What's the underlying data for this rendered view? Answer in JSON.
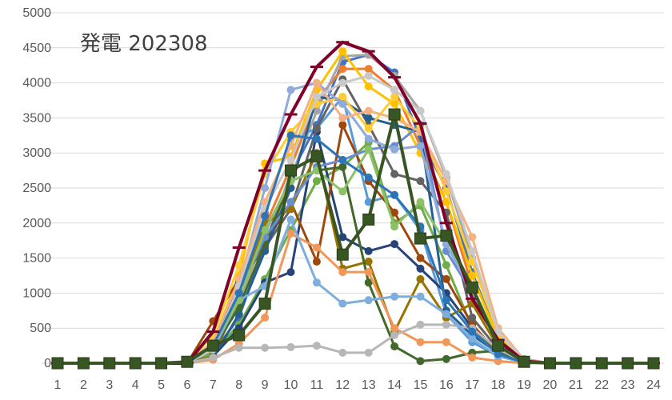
{
  "chart_data": {
    "type": "line",
    "title": "発電 202308",
    "xlabel": "",
    "ylabel": "",
    "x": [
      1,
      2,
      3,
      4,
      5,
      6,
      7,
      8,
      9,
      10,
      11,
      12,
      13,
      14,
      15,
      16,
      17,
      18,
      19,
      20,
      21,
      22,
      23,
      24
    ],
    "xticks": [
      "1",
      "2",
      "3",
      "4",
      "5",
      "6",
      "7",
      "8",
      "9",
      "10",
      "11",
      "12",
      "13",
      "14",
      "15",
      "16",
      "17",
      "18",
      "19",
      "20",
      "21",
      "22",
      "23",
      "24"
    ],
    "ylim": [
      0,
      5000
    ],
    "yticks": [
      "0",
      "500",
      "1000",
      "1500",
      "2000",
      "2500",
      "3000",
      "3500",
      "4000",
      "4500",
      "5000"
    ],
    "grid": "horizontal",
    "legend": "none",
    "series": [
      {
        "color": "#4472c4",
        "marker": "circle",
        "values": [
          0,
          0,
          0,
          0,
          0,
          0,
          150,
          650,
          1700,
          2700,
          3400,
          4300,
          4400,
          4150,
          3200,
          2500,
          1300,
          350,
          50,
          0,
          0,
          0,
          0,
          0
        ]
      },
      {
        "color": "#ed7d31",
        "marker": "circle",
        "values": [
          0,
          0,
          0,
          0,
          0,
          0,
          250,
          950,
          1950,
          2800,
          3750,
          4200,
          4200,
          3900,
          3100,
          2300,
          1100,
          300,
          30,
          0,
          0,
          0,
          0,
          0
        ]
      },
      {
        "color": "#a5a5a5",
        "marker": "circle",
        "values": [
          0,
          0,
          0,
          0,
          0,
          0,
          200,
          850,
          1850,
          2650,
          3600,
          4380,
          4400,
          4100,
          3600,
          2650,
          1500,
          450,
          60,
          0,
          0,
          0,
          0,
          0
        ]
      },
      {
        "color": "#ffc000",
        "marker": "circle",
        "values": [
          0,
          0,
          0,
          0,
          0,
          0,
          300,
          1250,
          2850,
          2950,
          3900,
          4450,
          3950,
          3700,
          3000,
          2300,
          1250,
          350,
          40,
          0,
          0,
          0,
          0,
          0
        ]
      },
      {
        "color": "#5b9bd5",
        "marker": "circle",
        "values": [
          0,
          0,
          0,
          0,
          0,
          0,
          150,
          1000,
          2150,
          3200,
          3350,
          3800,
          2300,
          2400,
          1900,
          700,
          300,
          100,
          10,
          0,
          0,
          0,
          0,
          0
        ]
      },
      {
        "color": "#70ad47",
        "marker": "circle",
        "values": [
          0,
          0,
          0,
          0,
          0,
          0,
          150,
          550,
          1200,
          1900,
          2600,
          2800,
          3150,
          2000,
          2250,
          1400,
          500,
          150,
          10,
          0,
          0,
          0,
          0,
          0
        ]
      },
      {
        "color": "#264478",
        "marker": "circle",
        "values": [
          0,
          0,
          0,
          0,
          0,
          0,
          100,
          500,
          1150,
          1300,
          3300,
          1800,
          1600,
          1700,
          1350,
          1000,
          500,
          180,
          20,
          0,
          0,
          0,
          0,
          0
        ]
      },
      {
        "color": "#9e480e",
        "marker": "circle",
        "values": [
          0,
          0,
          0,
          0,
          0,
          0,
          600,
          1200,
          1700,
          2300,
          1450,
          3400,
          2600,
          2150,
          1500,
          1200,
          550,
          150,
          20,
          0,
          0,
          0,
          0,
          0
        ]
      },
      {
        "color": "#636363",
        "marker": "circle",
        "values": [
          0,
          0,
          0,
          0,
          0,
          0,
          300,
          1150,
          1650,
          2200,
          3350,
          4050,
          3400,
          2700,
          2600,
          2150,
          650,
          200,
          20,
          0,
          0,
          0,
          0,
          0
        ]
      },
      {
        "color": "#997300",
        "marker": "circle",
        "values": [
          0,
          0,
          0,
          0,
          0,
          0,
          100,
          900,
          2000,
          2200,
          3000,
          1350,
          1450,
          450,
          1200,
          650,
          850,
          230,
          20,
          0,
          0,
          0,
          0,
          0
        ]
      },
      {
        "color": "#255e91",
        "marker": "circle",
        "values": [
          0,
          0,
          0,
          0,
          0,
          0,
          80,
          700,
          1600,
          2500,
          3800,
          3750,
          3500,
          3400,
          3300,
          750,
          400,
          150,
          10,
          0,
          0,
          0,
          0,
          0
        ]
      },
      {
        "color": "#43682b",
        "marker": "circle",
        "values": [
          0,
          0,
          0,
          0,
          0,
          0,
          200,
          800,
          1700,
          2600,
          2750,
          2800,
          1150,
          240,
          30,
          60,
          150,
          180,
          20,
          0,
          0,
          0,
          0,
          0
        ]
      },
      {
        "color": "#698ed0",
        "marker": "circle",
        "values": [
          0,
          0,
          0,
          0,
          0,
          0,
          300,
          1000,
          1800,
          2300,
          2800,
          2900,
          3050,
          3100,
          3400,
          1600,
          1000,
          280,
          20,
          0,
          0,
          0,
          0,
          0
        ]
      },
      {
        "color": "#f1975a",
        "marker": "circle",
        "values": [
          0,
          0,
          0,
          0,
          0,
          0,
          50,
          280,
          650,
          1850,
          1650,
          1300,
          1300,
          500,
          300,
          300,
          80,
          30,
          0,
          0,
          0,
          0,
          0,
          0
        ]
      },
      {
        "color": "#b7b7b7",
        "marker": "circle",
        "values": [
          0,
          0,
          0,
          0,
          0,
          0,
          80,
          220,
          220,
          230,
          250,
          150,
          150,
          400,
          550,
          550,
          500,
          200,
          20,
          0,
          0,
          0,
          0,
          0
        ]
      },
      {
        "color": "#ffcd33",
        "marker": "circle",
        "values": [
          0,
          0,
          0,
          0,
          0,
          0,
          400,
          1400,
          2700,
          3300,
          3700,
          3800,
          3350,
          3800,
          3350,
          2450,
          1450,
          420,
          40,
          0,
          0,
          0,
          0,
          0
        ]
      },
      {
        "color": "#7cafdd",
        "marker": "circle",
        "values": [
          0,
          0,
          0,
          0,
          0,
          0,
          200,
          900,
          1100,
          2050,
          1150,
          850,
          900,
          950,
          950,
          700,
          350,
          100,
          10,
          0,
          0,
          0,
          0,
          0
        ]
      },
      {
        "color": "#8cc168",
        "marker": "circle",
        "values": [
          0,
          0,
          0,
          0,
          0,
          0,
          250,
          900,
          1900,
          2600,
          2750,
          2450,
          3050,
          1950,
          2300,
          1700,
          1100,
          300,
          30,
          0,
          0,
          0,
          0,
          0
        ]
      },
      {
        "color": "#8faadc",
        "marker": "circle",
        "values": [
          0,
          0,
          0,
          0,
          0,
          0,
          200,
          1100,
          2500,
          3900,
          4000,
          3700,
          3200,
          3050,
          3100,
          1700,
          1000,
          300,
          30,
          0,
          0,
          0,
          0,
          0
        ]
      },
      {
        "color": "#f4b183",
        "marker": "circle",
        "values": [
          0,
          0,
          0,
          0,
          0,
          0,
          300,
          1200,
          2300,
          3100,
          4000,
          3500,
          3600,
          3500,
          3300,
          2600,
          1800,
          500,
          50,
          0,
          0,
          0,
          0,
          0
        ]
      },
      {
        "color": "#c9c9c9",
        "marker": "circle",
        "values": [
          0,
          0,
          0,
          0,
          0,
          0,
          200,
          1100,
          2200,
          2900,
          3800,
          4000,
          4100,
          3900,
          3600,
          2700,
          1600,
          450,
          40,
          0,
          0,
          0,
          0,
          0
        ]
      },
      {
        "color": "#2e75b6",
        "marker": "circle",
        "values": [
          0,
          0,
          0,
          0,
          0,
          0,
          250,
          1000,
          2100,
          3250,
          3200,
          2900,
          2650,
          2400,
          1950,
          900,
          450,
          130,
          10,
          0,
          0,
          0,
          0,
          0
        ]
      },
      {
        "color": "#7f0028",
        "marker": "dash",
        "values": [
          0,
          0,
          0,
          0,
          0,
          0,
          450,
          1650,
          2750,
          3550,
          4230,
          4580,
          4450,
          4080,
          3420,
          2000,
          920,
          330,
          30,
          0,
          0,
          0,
          0,
          0
        ]
      },
      {
        "color": "#375623",
        "marker": "square",
        "values": [
          0,
          0,
          0,
          0,
          0,
          20,
          250,
          400,
          850,
          2750,
          2950,
          1550,
          2050,
          3550,
          1780,
          1820,
          1080,
          250,
          20,
          0,
          0,
          0,
          0,
          0
        ]
      }
    ]
  }
}
